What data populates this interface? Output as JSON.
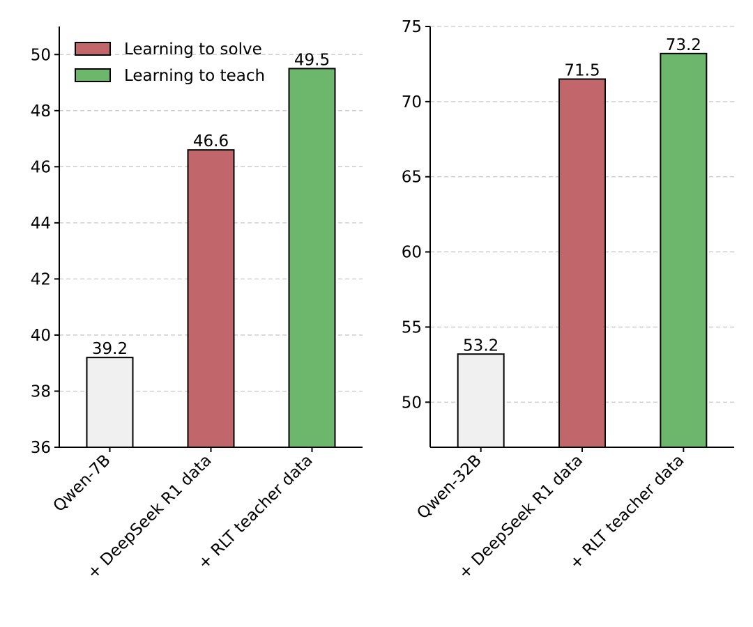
{
  "legend": {
    "position": "top-right",
    "entries": [
      {
        "label": "Learning to solve",
        "color": "#c1666a"
      },
      {
        "label": "Learning to teach",
        "color": "#6db76d"
      }
    ]
  },
  "colors": {
    "baseline": "#f0f0f0",
    "solve": "#c1666a",
    "teach": "#6db76d",
    "edge": "#000000",
    "grid": "#c8c8c8"
  },
  "chart_data": [
    {
      "type": "bar",
      "categories": [
        "Qwen-7B",
        "+ DeepSeek R1 data",
        "+ RLT teacher data"
      ],
      "values": [
        39.2,
        46.6,
        49.5
      ],
      "value_labels": [
        "39.2",
        "46.6",
        "49.5"
      ],
      "bar_kinds": [
        "baseline",
        "solve",
        "teach"
      ],
      "ylim": [
        36,
        51
      ],
      "yticks": [
        36,
        38,
        40,
        42,
        44,
        46,
        48,
        50
      ],
      "grid": true,
      "title": "",
      "xlabel": "",
      "ylabel": ""
    },
    {
      "type": "bar",
      "categories": [
        "Qwen-32B",
        "+ DeepSeek R1 data",
        "+ RLT teacher data"
      ],
      "values": [
        53.2,
        71.5,
        73.2
      ],
      "value_labels": [
        "53.2",
        "71.5",
        "73.2"
      ],
      "bar_kinds": [
        "baseline",
        "solve",
        "teach"
      ],
      "ylim": [
        47,
        75
      ],
      "yticks": [
        50,
        55,
        60,
        65,
        70,
        75
      ],
      "grid": true,
      "title": "",
      "xlabel": "",
      "ylabel": ""
    }
  ]
}
